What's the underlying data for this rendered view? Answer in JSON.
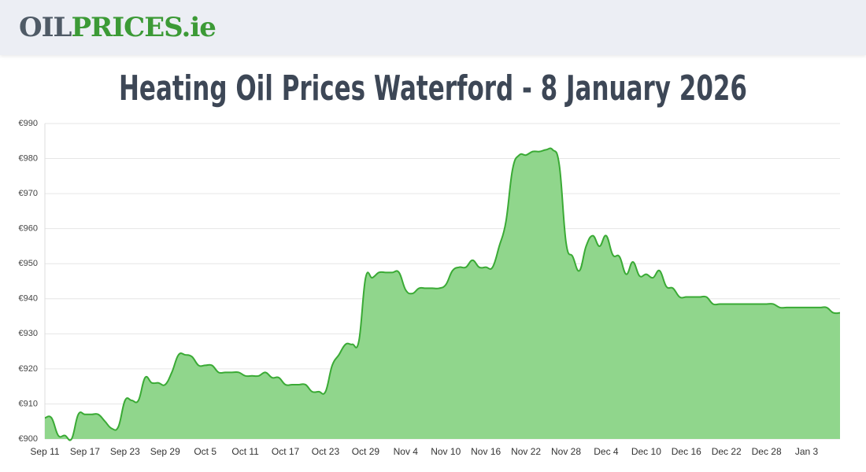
{
  "header": {
    "logo_left": "OIL",
    "logo_right": "PRICES.ie"
  },
  "chart_data": {
    "type": "area",
    "title": "Heating Oil Prices Waterford - 8 January 2026",
    "categories": [
      "Sep 11",
      null,
      null,
      null,
      null,
      null,
      "Sep 17",
      null,
      null,
      null,
      null,
      null,
      "Sep 23",
      null,
      null,
      null,
      null,
      null,
      "Sep 29",
      null,
      null,
      null,
      null,
      null,
      "Oct 5",
      null,
      null,
      null,
      null,
      null,
      "Oct 11",
      null,
      null,
      null,
      null,
      null,
      "Oct 17",
      null,
      null,
      null,
      null,
      null,
      "Oct 23",
      null,
      null,
      null,
      null,
      null,
      "Oct 29",
      null,
      null,
      null,
      null,
      null,
      "Nov 4",
      null,
      null,
      null,
      null,
      null,
      "Nov 10",
      null,
      null,
      null,
      null,
      null,
      "Nov 16",
      null,
      null,
      null,
      null,
      null,
      "Nov 22",
      null,
      null,
      null,
      null,
      null,
      "Nov 28",
      null,
      null,
      null,
      null,
      null,
      "Dec 4",
      null,
      null,
      null,
      null,
      null,
      "Dec 10",
      null,
      null,
      null,
      null,
      null,
      "Dec 16",
      null,
      null,
      null,
      null,
      null,
      "Dec 22",
      null,
      null,
      null,
      null,
      null,
      "Dec 28",
      null,
      null,
      null,
      null,
      null,
      "Jan 3",
      null,
      null,
      null,
      null,
      null
    ],
    "values": [
      906,
      906,
      901,
      901,
      900,
      907,
      907,
      907,
      907,
      905,
      903,
      903.5,
      911,
      911,
      911,
      917.5,
      916,
      916,
      915.5,
      919,
      924,
      924,
      923.5,
      921,
      921,
      921,
      919,
      919,
      919,
      919,
      918,
      918,
      918,
      919,
      917.5,
      917.5,
      915.5,
      915.5,
      915.5,
      915.5,
      913.5,
      913.5,
      913.5,
      921,
      924,
      927,
      927,
      928,
      946,
      946,
      947.5,
      947.5,
      947.5,
      947.5,
      942.5,
      941.5,
      943,
      943,
      943,
      943,
      944,
      948,
      949,
      949,
      951,
      949,
      949,
      949,
      955,
      962,
      977,
      981,
      981,
      982,
      982,
      982.5,
      982.5,
      978,
      956,
      952,
      948,
      955,
      958,
      955,
      958,
      952.5,
      952,
      947,
      950.5,
      946.5,
      947,
      946,
      948,
      943.5,
      943,
      940.5,
      940.5,
      940.5,
      940.5,
      940.5,
      938.5,
      938.5,
      938.5,
      938.5,
      938.5,
      938.5,
      938.5,
      938.5,
      938.5,
      938.5,
      937.5,
      937.5,
      937.5,
      937.5,
      937.5,
      937.5,
      937.5,
      937.5,
      936,
      936
    ],
    "color": "#3aaa35",
    "fill_color": "#90d68c",
    "ylim": [
      900,
      990
    ],
    "yticks": [
      {
        "value": 900,
        "label": "€900"
      },
      {
        "value": 910,
        "label": "€910"
      },
      {
        "value": 920,
        "label": "€920"
      },
      {
        "value": 930,
        "label": "€930"
      },
      {
        "value": 940,
        "label": "€940"
      },
      {
        "value": 950,
        "label": "€950"
      },
      {
        "value": 960,
        "label": "€960"
      },
      {
        "value": 970,
        "label": "€970"
      },
      {
        "value": 980,
        "label": "€980"
      },
      {
        "value": 990,
        "label": "€990"
      }
    ],
    "grid": true
  }
}
